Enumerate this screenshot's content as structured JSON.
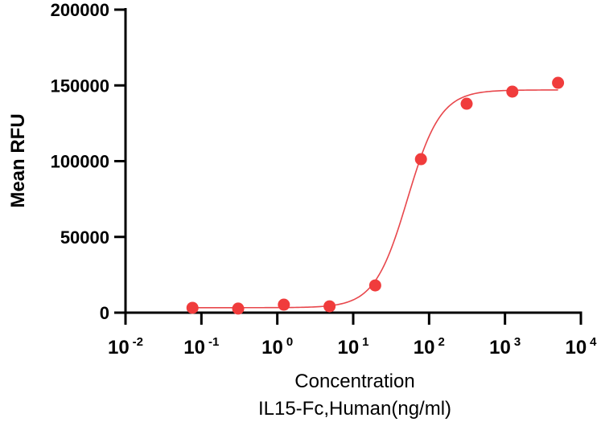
{
  "chart_data": {
    "type": "scatter",
    "title": "",
    "xlabel": "Concentration",
    "xlabel_line2": "IL15-Fc,Human(ng/ml)",
    "ylabel": "Mean RFU",
    "xscale": "log",
    "xlim": [
      0.01,
      10000
    ],
    "ylim": [
      0,
      200000
    ],
    "x_ticks": [
      {
        "base": "10",
        "exp": "-2",
        "value": 0.01
      },
      {
        "base": "10",
        "exp": "-1",
        "value": 0.1
      },
      {
        "base": "10",
        "exp": "0",
        "value": 1
      },
      {
        "base": "10",
        "exp": "1",
        "value": 10
      },
      {
        "base": "10",
        "exp": "2",
        "value": 100
      },
      {
        "base": "10",
        "exp": "3",
        "value": 1000
      },
      {
        "base": "10",
        "exp": "4",
        "value": 10000
      }
    ],
    "y_ticks": [
      {
        "label": "0",
        "value": 0
      },
      {
        "label": "50000",
        "value": 50000
      },
      {
        "label": "100000",
        "value": 100000
      },
      {
        "label": "150000",
        "value": 150000
      },
      {
        "label": "200000",
        "value": 200000
      }
    ],
    "grid": false,
    "legend": "none",
    "series": [
      {
        "name": "IL15-Fc,Human",
        "color": "#f03c3c",
        "x": [
          0.0763,
          0.305,
          1.22,
          4.88,
          19.5,
          78.1,
          312.5,
          1250,
          5000
        ],
        "y": [
          3200,
          2700,
          5300,
          4200,
          18000,
          101300,
          137900,
          145900,
          151700
        ]
      }
    ],
    "fit": {
      "model": "4PL",
      "bottom": 3300,
      "top": 147000,
      "ec50": 52,
      "hill": 2,
      "x_range": [
        0.0763,
        5000
      ],
      "color": "#e8474c"
    }
  }
}
